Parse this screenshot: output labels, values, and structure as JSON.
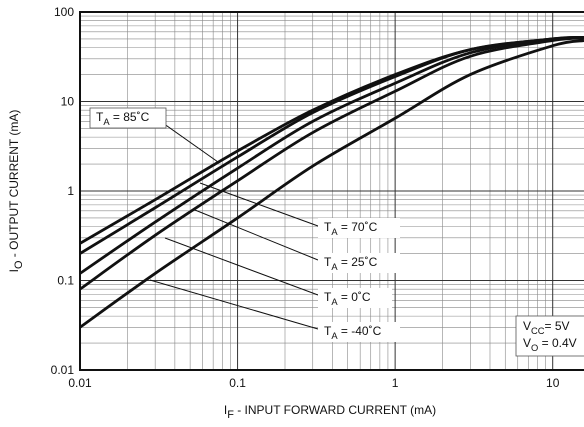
{
  "chart_data": {
    "type": "line",
    "xlabel": [
      "I",
      "F",
      " - INPUT FORWARD CURRENT (mA)"
    ],
    "ylabel": [
      "I",
      "O",
      " - OUTPUT CURRENT (mA)"
    ],
    "log_x": true,
    "log_y": true,
    "grid": true,
    "xlim": [
      0.01,
      15.8
    ],
    "ylim": [
      0.01,
      100
    ],
    "xticks": [
      0.01,
      0.1,
      1,
      10
    ],
    "yticks": [
      0.01,
      0.1,
      1,
      10,
      100
    ],
    "x": [
      0.01,
      0.03,
      0.1,
      0.3,
      1,
      3,
      10,
      15.8
    ],
    "series": [
      {
        "name": [
          "T",
          "A",
          " = 85˚C"
        ],
        "color": "#111111",
        "values": [
          0.26,
          0.8,
          2.8,
          8,
          20,
          38,
          50,
          52
        ]
      },
      {
        "name": [
          "T",
          "A",
          " = 70˚C"
        ],
        "color": "#111111",
        "values": [
          0.2,
          0.65,
          2.4,
          7.5,
          19,
          38,
          50,
          52
        ]
      },
      {
        "name": [
          "T",
          "A",
          " = 25˚C"
        ],
        "color": "#111111",
        "values": [
          0.12,
          0.45,
          1.8,
          6,
          16,
          35,
          50,
          52
        ]
      },
      {
        "name": [
          "T",
          "A",
          " = 0˚C"
        ],
        "color": "#111111",
        "values": [
          0.08,
          0.32,
          1.3,
          4.5,
          13,
          32,
          48,
          51
        ]
      },
      {
        "name": [
          "T",
          "A",
          " = -40˚C"
        ],
        "color": "#111111",
        "values": [
          0.03,
          0.12,
          0.5,
          1.9,
          6.5,
          20,
          42,
          48
        ]
      }
    ],
    "annotations": [
      [
        "V",
        "CC",
        "= 5V"
      ],
      [
        "V",
        "O",
        " = 0.4V"
      ]
    ]
  }
}
